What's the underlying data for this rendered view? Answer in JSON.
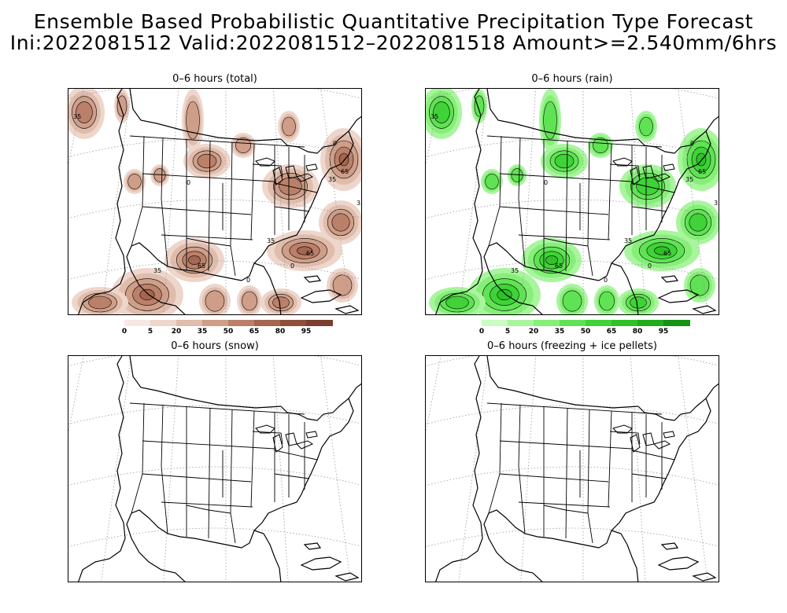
{
  "title": {
    "line1": "Ensemble Based Probabilistic Quantitative Precipitation Type Forecast",
    "line2": "Ini:2022081512 Valid:2022081512–2022081518 Amount>=2.540mm/6hrs"
  },
  "panels": [
    {
      "title": "0–6 hours (total)",
      "scheme": "brown"
    },
    {
      "title": "0–6 hours (rain)",
      "scheme": "green"
    },
    {
      "title": "0–6 hours (snow)",
      "scheme": "none"
    },
    {
      "title": "0–6 hours (freezing + ice pellets)",
      "scheme": "none"
    }
  ],
  "legend": {
    "labels": [
      "0",
      "5",
      "20",
      "35",
      "50",
      "65",
      "80",
      "95"
    ],
    "brown_colors": [
      "#f6e9e4",
      "#eed6cc",
      "#e0bcab",
      "#cf9e89",
      "#bb8069",
      "#a5654e",
      "#8f4f3b",
      "#7a3f2f"
    ],
    "green_colors": [
      "#c9fbc2",
      "#a8f59e",
      "#86ef78",
      "#5fe354",
      "#3fd337",
      "#2ec227",
      "#20ad1b",
      "#169214"
    ]
  },
  "contour_labels": [
    "35",
    "65",
    "0"
  ]
}
